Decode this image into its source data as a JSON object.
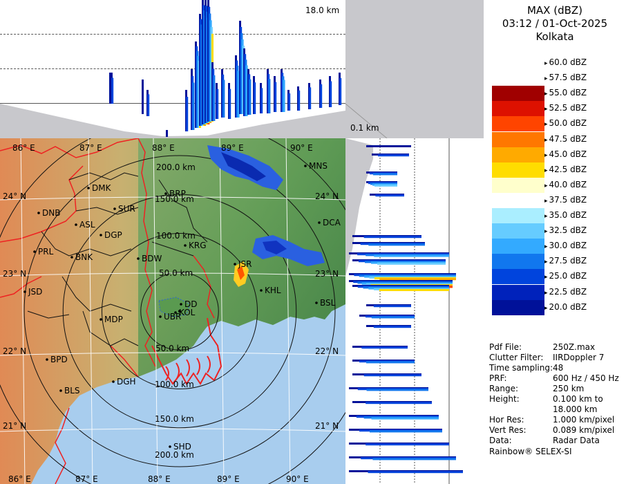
{
  "legend": {
    "title_line1": "MAX (dBZ)",
    "title_line2": "03:12 / 01-Oct-2025",
    "title_line3": "Kolkata",
    "scale": [
      {
        "label": "60.0 dBZ",
        "color": "#ffffff"
      },
      {
        "label": "57.5 dBZ",
        "color": "#ffffff"
      },
      {
        "label": "55.0 dBZ",
        "color": "#a00000"
      },
      {
        "label": "52.5 dBZ",
        "color": "#dd1100"
      },
      {
        "label": "50.0 dBZ",
        "color": "#ff4400"
      },
      {
        "label": "47.5 dBZ",
        "color": "#ff7700"
      },
      {
        "label": "45.0 dBZ",
        "color": "#ffaa00"
      },
      {
        "label": "42.5 dBZ",
        "color": "#ffdd00"
      },
      {
        "label": "40.0 dBZ",
        "color": "#ffffcc"
      },
      {
        "label": "37.5 dBZ",
        "color": "#ffffff"
      },
      {
        "label": "35.0 dBZ",
        "color": "#aaeeff"
      },
      {
        "label": "32.5 dBZ",
        "color": "#66ccff"
      },
      {
        "label": "30.0 dBZ",
        "color": "#33aaff"
      },
      {
        "label": "27.5 dBZ",
        "color": "#1177ee"
      },
      {
        "label": "25.0 dBZ",
        "color": "#0044dd"
      },
      {
        "label": "22.5 dBZ",
        "color": "#0022bb"
      },
      {
        "label": "20.0 dBZ",
        "color": "#001199"
      }
    ]
  },
  "info": {
    "pdf_file_key": "Pdf File:",
    "pdf_file_val": "250Z.max",
    "clutter_key": "Clutter Filter:",
    "clutter_val": "IIRDoppler 7",
    "timesamp": "Time sampling:48",
    "prf_key": "PRF:",
    "prf_val": "600 Hz / 450 Hz",
    "range_key": "Range:",
    "range_val": "250 km",
    "height_key": "Height:",
    "height_val": "0.100 km to 18.000 km",
    "hor_key": "Hor Res:",
    "hor_val": "1.000 km/pixel",
    "vert_key": "Vert Res:",
    "vert_val": "0.089 km/pixel",
    "data_key": "Data:",
    "data_val": "Radar Data",
    "credit": "Rainbow® SELEX-SI"
  },
  "heights": {
    "top": "18.0 km",
    "bottom": "0.1 km"
  },
  "map": {
    "range_rings": [
      "50.0 km",
      "100.0 km",
      "150.0 km",
      "200.0 km"
    ],
    "lon_labels": [
      "86° E",
      "87° E",
      "88° E",
      "89° E",
      "90° E"
    ],
    "lat_labels": [
      "24° N",
      "23° N",
      "22° N",
      "21° N"
    ],
    "cities": [
      "DMK",
      "BRP",
      "MNS",
      "DNB",
      "SUR",
      "ASL",
      "DGP",
      "DCA",
      "PRL",
      "KRG",
      "BNK",
      "BDW",
      "JSR",
      "KHL",
      "JSD",
      "DD",
      "KOL",
      "BSL",
      "MDP",
      "UBR",
      "BPD",
      "DGH",
      "BLS",
      "SHD"
    ],
    "colors": {
      "land_low": "#5a9a50",
      "land_mid": "#8bb56a",
      "land_high": "#e08a50",
      "sea": "#a8cdee",
      "state_border": "#ee2222",
      "district_border": "#111111",
      "rings": "#111111"
    }
  }
}
